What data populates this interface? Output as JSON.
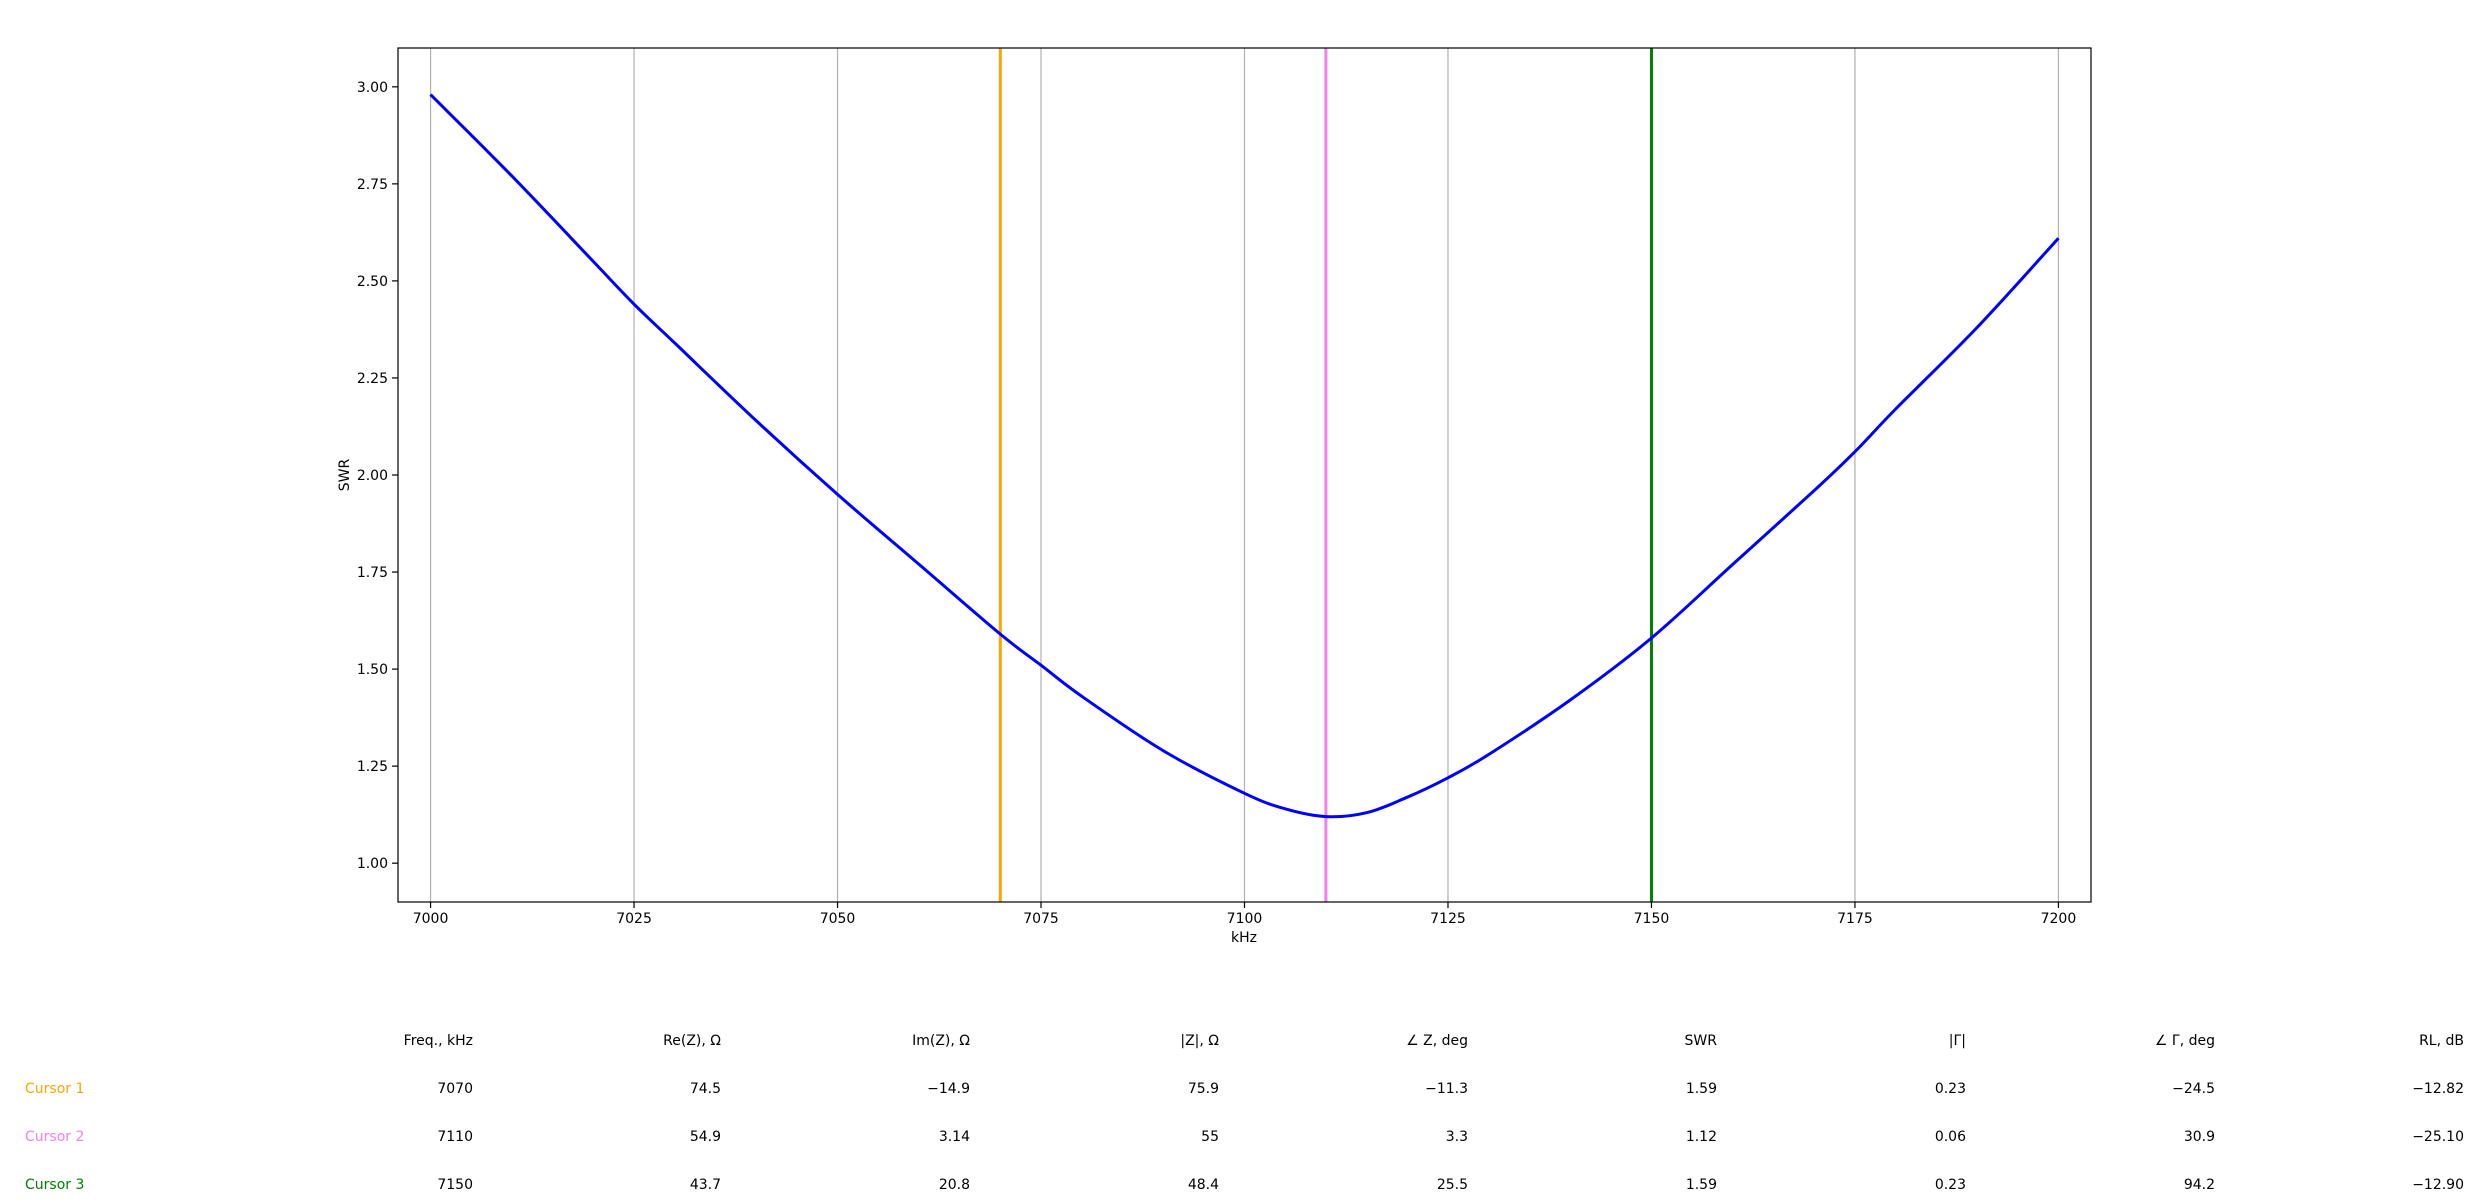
{
  "chart_data": {
    "type": "line",
    "xlabel": "kHz",
    "ylabel": "SWR",
    "xlim": [
      6996,
      7204
    ],
    "ylim": [
      0.9,
      3.1
    ],
    "xticks": [
      7000,
      7025,
      7050,
      7075,
      7100,
      7125,
      7150,
      7175,
      7200
    ],
    "yticks": [
      "1.00",
      "1.25",
      "1.50",
      "1.75",
      "2.00",
      "2.25",
      "2.50",
      "2.75",
      "3.00"
    ],
    "grid": "vertical",
    "series": [
      {
        "color": "#0000ff",
        "x": [
          7000,
          7010,
          7020,
          7025,
          7030,
          7040,
          7050,
          7060,
          7070,
          7075,
          7080,
          7090,
          7100,
          7105,
          7110,
          7115,
          7120,
          7125,
          7130,
          7140,
          7150,
          7160,
          7170,
          7175,
          7180,
          7190,
          7200
        ],
        "y": [
          2.98,
          2.77,
          2.55,
          2.44,
          2.34,
          2.14,
          1.95,
          1.77,
          1.59,
          1.51,
          1.43,
          1.29,
          1.18,
          1.14,
          1.12,
          1.13,
          1.17,
          1.22,
          1.28,
          1.42,
          1.58,
          1.77,
          1.96,
          2.06,
          2.17,
          2.38,
          2.61
        ]
      }
    ],
    "cursors": [
      {
        "x": 7070,
        "color": "#ffa500"
      },
      {
        "x": 7110,
        "color": "#ee82ee"
      },
      {
        "x": 7150,
        "color": "#008000"
      }
    ]
  },
  "cursor_table": {
    "headers": [
      "Freq., kHz",
      "Re(Z), Ω",
      "Im(Z), Ω",
      "|Z|, Ω",
      "∠ Z, deg",
      "SWR",
      "|Γ|",
      "∠ Γ, deg",
      "RL, dB"
    ],
    "rows": [
      {
        "label": "Cursor 1",
        "color": "#ffa500",
        "cells": [
          "7070",
          "74.5",
          "−14.9",
          "75.9",
          "−11.3",
          "1.59",
          "0.23",
          "−24.5",
          "−12.82"
        ]
      },
      {
        "label": "Cursor 2",
        "color": "#ee82ee",
        "cells": [
          "7110",
          "54.9",
          "3.14",
          "55",
          "3.3",
          "1.12",
          "0.06",
          "30.9",
          "−25.10"
        ]
      },
      {
        "label": "Cursor 3",
        "color": "#008000",
        "cells": [
          "7150",
          "43.7",
          "20.8",
          "48.4",
          "25.5",
          "1.59",
          "0.23",
          "94.2",
          "−12.90"
        ]
      }
    ]
  }
}
